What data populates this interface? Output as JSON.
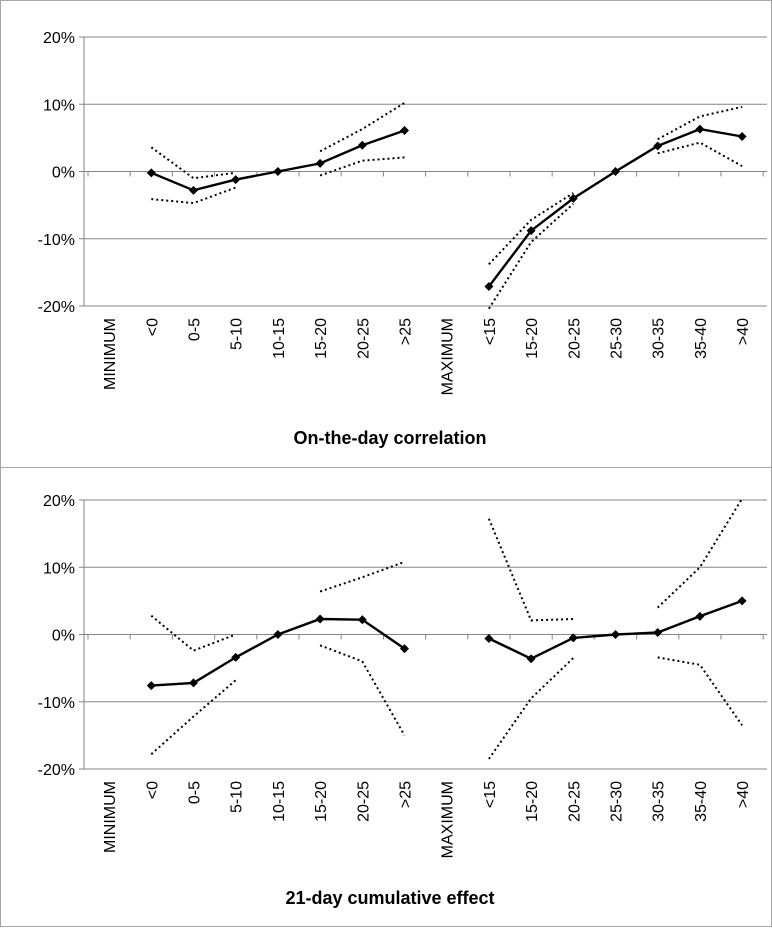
{
  "chart_data": [
    {
      "type": "line",
      "title": "On-the-day correlation",
      "ylim": [
        -20,
        20
      ],
      "yticks": [
        "20%",
        "10%",
        "0%",
        "-10%",
        "-20%"
      ],
      "ytick_values": [
        20,
        10,
        0,
        -10,
        -20
      ],
      "categories": [
        "MINIMUM",
        "<0",
        "0-5",
        "5-10",
        "10-15",
        "15-20",
        "20-25",
        ">25",
        "MAXIMUM",
        "<15",
        "15-20",
        "20-25",
        "25-30",
        "30-35",
        "35-40",
        ">40"
      ],
      "series": [
        {
          "role": "estimate",
          "style": "solid",
          "values": [
            null,
            -0.2,
            -2.8,
            -1.2,
            0,
            1.2,
            3.9,
            6.1,
            null,
            -17.1,
            -8.8,
            -4.0,
            0,
            3.8,
            6.3,
            5.2
          ]
        },
        {
          "role": "upper",
          "style": "dotted",
          "values": [
            null,
            3.6,
            -1.0,
            -0.2,
            null,
            3.0,
            6.3,
            10.2,
            null,
            -13.8,
            -7.2,
            -3.2,
            null,
            4.8,
            8.2,
            9.6
          ]
        },
        {
          "role": "lower",
          "style": "dotted",
          "values": [
            null,
            -4.1,
            -4.7,
            -2.4,
            null,
            -0.6,
            1.6,
            2.1,
            null,
            -20.4,
            -10.5,
            -4.8,
            null,
            2.7,
            4.3,
            0.8
          ]
        }
      ],
      "grid": true
    },
    {
      "type": "line",
      "title": "21-day cumulative effect",
      "ylim": [
        -20,
        20
      ],
      "yticks": [
        "20%",
        "10%",
        "0%",
        "-10%",
        "-20%"
      ],
      "ytick_values": [
        20,
        10,
        0,
        -10,
        -20
      ],
      "categories": [
        "MINIMUM",
        "<0",
        "0-5",
        "5-10",
        "10-15",
        "15-20",
        "20-25",
        ">25",
        "MAXIMUM",
        "<15",
        "15-20",
        "20-25",
        "25-30",
        "30-35",
        "35-40",
        ">40"
      ],
      "series": [
        {
          "role": "estimate",
          "style": "solid",
          "values": [
            null,
            -7.6,
            -7.2,
            -3.4,
            0,
            2.3,
            2.2,
            -2.1,
            null,
            -0.6,
            -3.6,
            -0.5,
            0,
            0.3,
            2.7,
            5.0
          ]
        },
        {
          "role": "upper",
          "style": "dotted",
          "values": [
            null,
            2.8,
            -2.4,
            0,
            null,
            6.4,
            8.5,
            10.8,
            null,
            17.2,
            2.1,
            2.3,
            null,
            4.0,
            10.0,
            20.2
          ]
        },
        {
          "role": "lower",
          "style": "dotted",
          "values": [
            null,
            -17.8,
            -12.2,
            -6.8,
            null,
            -1.6,
            -4.0,
            -15.0,
            null,
            -18.5,
            -9.5,
            -3.5,
            null,
            -3.4,
            -4.5,
            -13.5
          ]
        }
      ],
      "grid": true
    }
  ]
}
